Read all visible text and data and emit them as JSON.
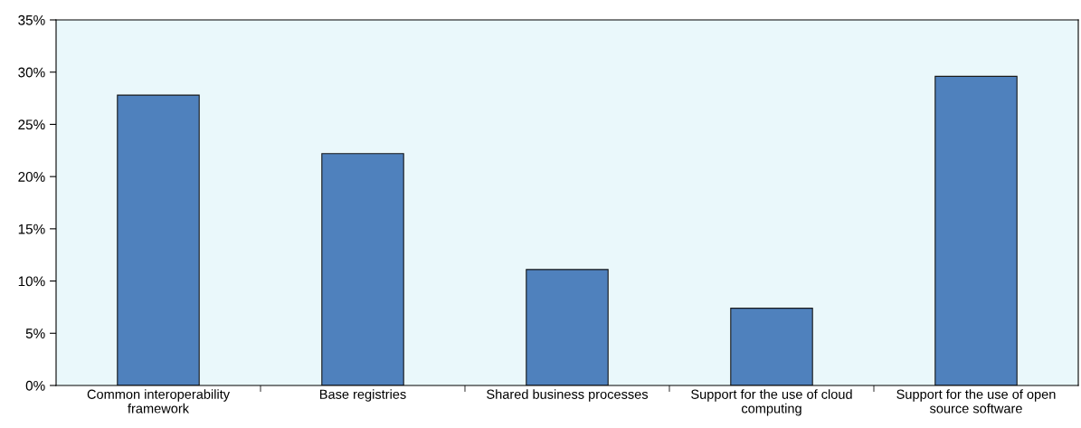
{
  "chart_data": {
    "type": "bar",
    "categories": [
      "Common interoperability\nframework",
      "Base registries",
      "Shared business processes",
      "Support for the use of cloud\ncomputing",
      "Support for the use of open\nsource software"
    ],
    "values": [
      27.8,
      22.2,
      11.1,
      7.4,
      29.6
    ],
    "color": "#4f81bd",
    "ylim": [
      0,
      35
    ],
    "yticks": [
      {
        "value": 0,
        "label": "0%"
      },
      {
        "value": 5,
        "label": "5%"
      },
      {
        "value": 10,
        "label": "10%"
      },
      {
        "value": 15,
        "label": "15%"
      },
      {
        "value": 20,
        "label": "20%"
      },
      {
        "value": 25,
        "label": "25%"
      },
      {
        "value": 30,
        "label": "30%"
      },
      {
        "value": 35,
        "label": "35%"
      }
    ],
    "grid": false
  }
}
